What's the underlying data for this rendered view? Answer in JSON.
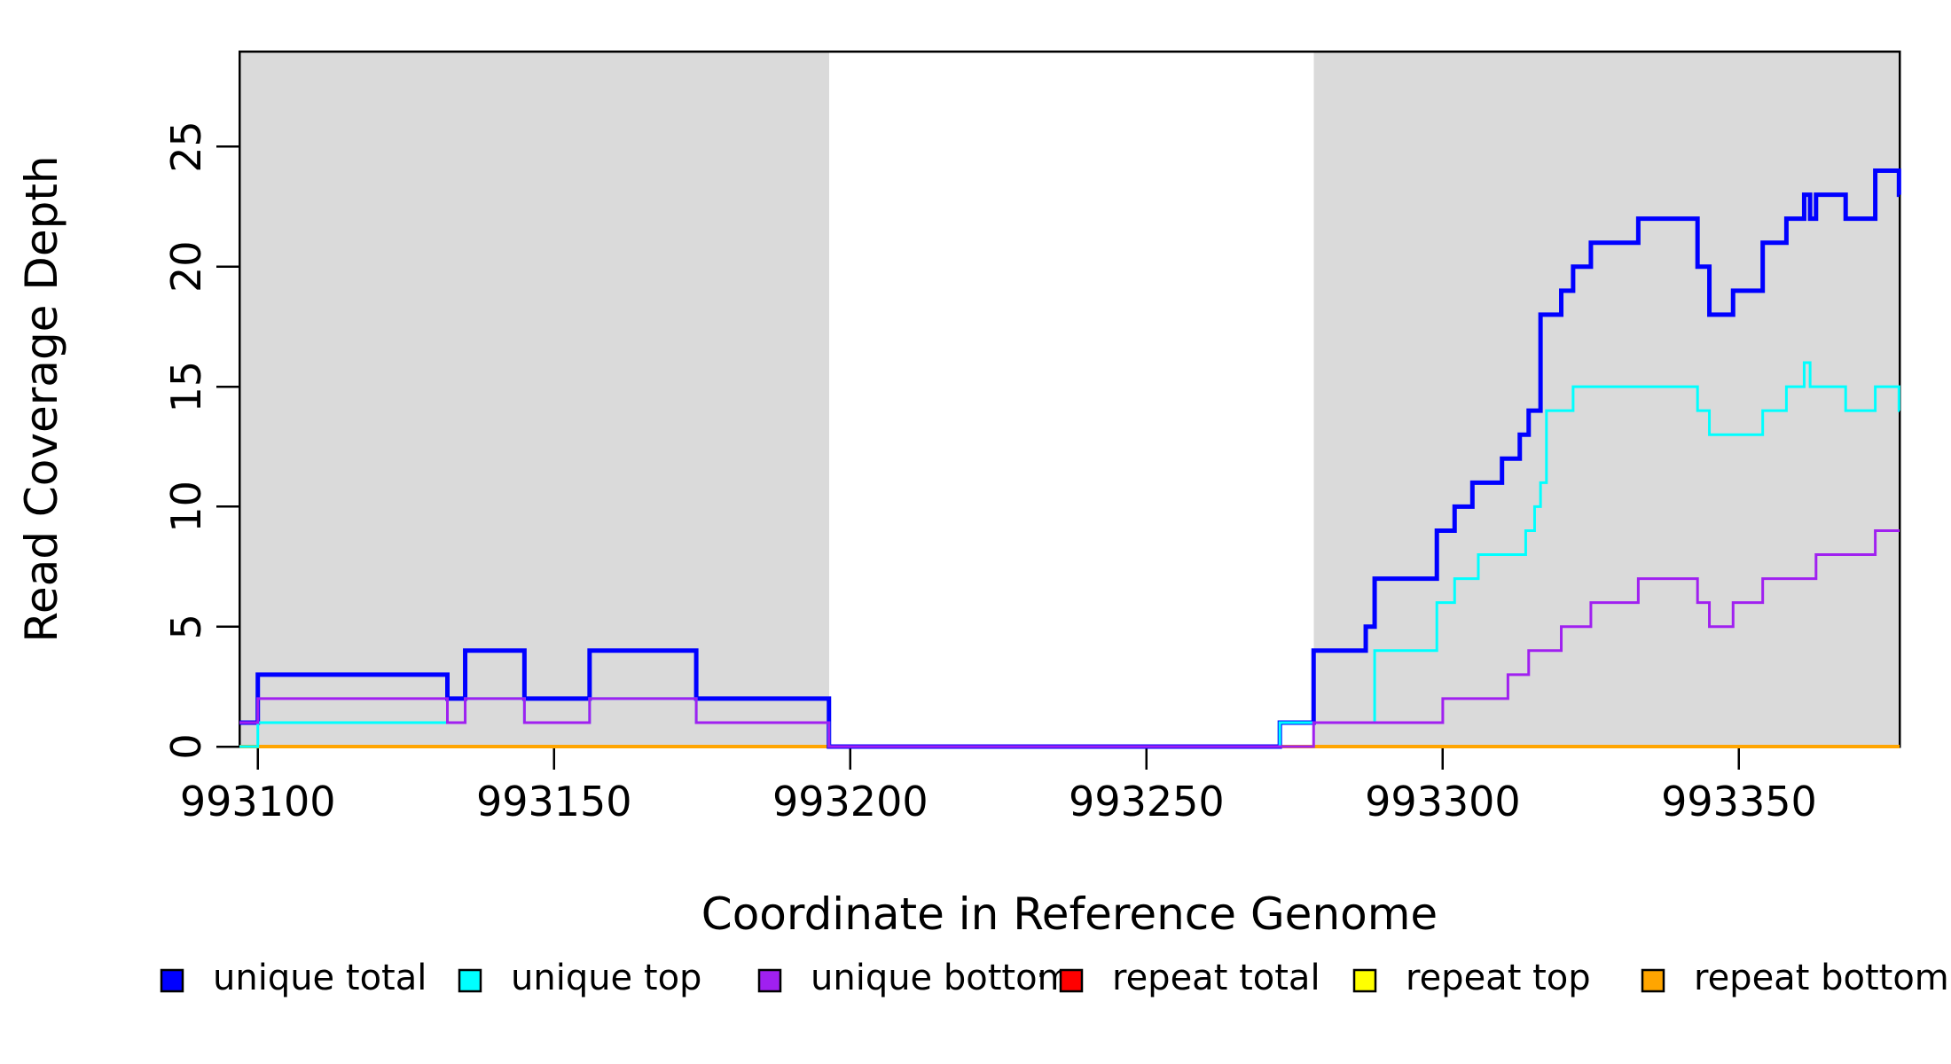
{
  "figure": {
    "background_color": "#FFFFFF",
    "axis_color": "#000000",
    "shade_color": "#DADADA"
  },
  "chart_data": {
    "type": "line",
    "subtype": "step-coverage-plot",
    "title": "",
    "xlabel": "Coordinate in Reference Genome",
    "ylabel": "Read Coverage Depth",
    "xlim": [
      993096.9,
      993377.1
    ],
    "ylim": [
      0,
      28.97
    ],
    "x_ticks": [
      993100,
      993150,
      993200,
      993250,
      993300,
      993350
    ],
    "x_tick_labels": [
      "993100",
      "993150",
      "993200",
      "993250",
      "993300",
      "993350"
    ],
    "y_ticks": [
      0,
      5,
      10,
      15,
      20,
      25
    ],
    "y_tick_labels": [
      "0",
      "5",
      "10",
      "15",
      "20",
      "25"
    ],
    "grid": false,
    "legend_position": "bottom",
    "shaded_regions": [
      {
        "from": 993096.9,
        "to": 993196.4
      },
      {
        "from": 993278.2,
        "to": 993377.1
      }
    ],
    "series": [
      {
        "name": "repeat total",
        "color": "#FF0000",
        "line_width": 3,
        "steps": [
          [
            993096.9,
            0
          ]
        ]
      },
      {
        "name": "repeat top",
        "color": "#FFFF00",
        "line_width": 3,
        "steps": [
          [
            993096.9,
            0
          ]
        ]
      },
      {
        "name": "repeat bottom",
        "color": "#FFA500",
        "line_width": 4,
        "steps": [
          [
            993096.9,
            0
          ]
        ]
      },
      {
        "name": "unique total",
        "color": "#0000FF",
        "line_width": 5,
        "steps": [
          [
            993096.9,
            1
          ],
          [
            993100,
            3
          ],
          [
            993132,
            2
          ],
          [
            993135,
            4
          ],
          [
            993145,
            2
          ],
          [
            993156,
            4
          ],
          [
            993174,
            2
          ],
          [
            993196.4,
            0
          ],
          [
            993272.5,
            1
          ],
          [
            993278.2,
            4
          ],
          [
            993287,
            5
          ],
          [
            993288.5,
            7
          ],
          [
            993299,
            9
          ],
          [
            993302,
            10
          ],
          [
            993305,
            11
          ],
          [
            993310,
            12
          ],
          [
            993313,
            13
          ],
          [
            993314.5,
            14
          ],
          [
            993316.5,
            18
          ],
          [
            993320,
            19
          ],
          [
            993322,
            20
          ],
          [
            993325,
            21
          ],
          [
            993333,
            22
          ],
          [
            993343,
            20
          ],
          [
            993345,
            18
          ],
          [
            993349,
            19
          ],
          [
            993354,
            21
          ],
          [
            993358,
            22
          ],
          [
            993361,
            23
          ],
          [
            993362,
            22
          ],
          [
            993363,
            23
          ],
          [
            993368,
            22
          ],
          [
            993373,
            24
          ],
          [
            993377,
            23
          ]
        ]
      },
      {
        "name": "unique top",
        "color": "#00FFFF",
        "line_width": 3,
        "steps": [
          [
            993096.9,
            0
          ],
          [
            993100,
            1
          ],
          [
            993135,
            2
          ],
          [
            993145,
            1
          ],
          [
            993156,
            2
          ],
          [
            993174,
            1
          ],
          [
            993196.4,
            0
          ],
          [
            993272.5,
            1
          ],
          [
            993288.5,
            4
          ],
          [
            993299,
            6
          ],
          [
            993302,
            7
          ],
          [
            993306,
            8
          ],
          [
            993314,
            9
          ],
          [
            993315.5,
            10
          ],
          [
            993316.5,
            11
          ],
          [
            993317.5,
            14
          ],
          [
            993322,
            15
          ],
          [
            993343,
            14
          ],
          [
            993345,
            13
          ],
          [
            993354,
            14
          ],
          [
            993358,
            15
          ],
          [
            993361,
            16
          ],
          [
            993362,
            15
          ],
          [
            993368,
            14
          ],
          [
            993373,
            15
          ],
          [
            993377,
            14
          ]
        ]
      },
      {
        "name": "unique bottom",
        "color": "#A020F0",
        "line_width": 3,
        "steps": [
          [
            993096.9,
            1
          ],
          [
            993100,
            2
          ],
          [
            993132,
            1
          ],
          [
            993135,
            2
          ],
          [
            993145,
            1
          ],
          [
            993156,
            2
          ],
          [
            993174,
            1
          ],
          [
            993196.4,
            0
          ],
          [
            993278.2,
            1
          ],
          [
            993300,
            2
          ],
          [
            993311,
            3
          ],
          [
            993314.5,
            4
          ],
          [
            993320,
            5
          ],
          [
            993325,
            6
          ],
          [
            993333,
            7
          ],
          [
            993343,
            6
          ],
          [
            993345,
            5
          ],
          [
            993349,
            6
          ],
          [
            993354,
            7
          ],
          [
            993363,
            8
          ],
          [
            993373,
            9
          ]
        ]
      }
    ],
    "legend": {
      "items": [
        {
          "label": "unique total",
          "color": "#0000FF"
        },
        {
          "label": "unique top",
          "color": "#00FFFF"
        },
        {
          "label": "unique bottom",
          "color": "#A020F0"
        },
        {
          "label": "repeat total",
          "color": "#FF0000"
        },
        {
          "label": "repeat top",
          "color": "#FFFF00"
        },
        {
          "label": "repeat bottom",
          "color": "#FFA500"
        }
      ],
      "stray_mark": "."
    }
  }
}
